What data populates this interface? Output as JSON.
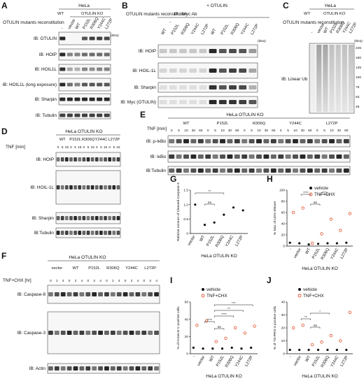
{
  "figure": {
    "panels": [
      {
        "id": "A",
        "letter": "A",
        "cell_line": "HeLa",
        "reconstitution_label": "OTULIN mutants reconstitution",
        "lanes": [
          "-",
          "vector",
          "WT",
          "P152L",
          "R306Q",
          "Y244C",
          "L272P"
        ],
        "group_labels": [
          "WT",
          "OTULIN KO"
        ],
        "blots": [
          "IB: OTULIN",
          "IB: HOIP",
          "IB: HOIL1L",
          "IB: HOIL1L (long exposure)",
          "IB: Sharpin",
          "IB: Tubulin"
        ]
      },
      {
        "id": "B",
        "letter": "B",
        "ip": "IP : Myc Ab",
        "reconstitution_label": "OTULIN mutants reconstitution",
        "conditions": [
          "-",
          "+ OTULIN"
        ],
        "lanes": [
          "WT",
          "P152L",
          "R306Q",
          "Y244C",
          "L272P",
          "WT",
          "P152L",
          "R306Q",
          "Y244C",
          "L272P"
        ],
        "blots": [
          "IB: HOIP",
          "IB: HOIL-1L",
          "IB: Sharpin",
          "IB: Myc (OTULIN)"
        ]
      },
      {
        "id": "C",
        "letter": "C",
        "cell_line": "HeLa",
        "reconstitution_label": "OTULIN mutants reconstitution",
        "lanes": [
          "-",
          "vector",
          "WT",
          "P152L",
          "R306Q",
          "Y244C",
          "L272P"
        ],
        "group_labels": [
          "WT",
          "OTULIN KO"
        ],
        "blots": [
          "IB: Linear Ub"
        ],
        "mw": [
          "245",
          "180",
          "135",
          "100",
          "75",
          "63",
          "48"
        ]
      },
      {
        "id": "D",
        "letter": "D",
        "cell_line": "HeLa OTULIN KO",
        "treatment": "TNF [min]",
        "groups": [
          "WT",
          "P152L",
          "R306Q",
          "Y244C",
          "L272P"
        ],
        "times": [
          "0",
          "5",
          "15"
        ],
        "blots": [
          "IB: HOIP",
          "IB: HOIL-1L",
          "IB: Sharpin",
          "IB:Tubulin"
        ]
      },
      {
        "id": "E",
        "letter": "E",
        "cell_line": "HeLa OTULIN KO",
        "treatment": "TNF [min]",
        "groups": [
          "WT",
          "P152L",
          "R306Q",
          "Y244C",
          "L272P"
        ],
        "times": [
          "0",
          "5",
          "10",
          "30",
          "60"
        ],
        "blots": [
          "IB: p-IκBα",
          "IB: IκBα",
          "IB:Tubulin"
        ]
      },
      {
        "id": "F",
        "letter": "F",
        "cell_line": "HeLa OTULIN KO",
        "treatment": "TNF+CHX [hr]",
        "groups": [
          "vector",
          "WT",
          "P152L",
          "R306Q",
          "Y244C",
          "L272P"
        ],
        "times": [
          "0",
          "2",
          "4"
        ],
        "blots": [
          "IB: Caspase-8",
          "IB: Caspase-3",
          "IB: Actin"
        ]
      },
      {
        "id": "G",
        "letter": "G",
        "ylabel": "Relative amount of Cleaved Caspase-3",
        "xlabel": "HeLa OTULIN KO",
        "ns": "ns",
        "stars": "**"
      },
      {
        "id": "H",
        "letter": "H",
        "ylabel": "% Max of LDH release",
        "xlabel": "HeLa OTULIN KO",
        "ns": "ns",
        "stars": "****"
      },
      {
        "id": "I",
        "letter": "I",
        "ylabel": "% of Annexin-V positive cells",
        "xlabel": "HeLa OTULIN KO",
        "ns": "ns",
        "stars": [
          "****",
          "****",
          "**",
          "***"
        ]
      },
      {
        "id": "J",
        "letter": "J",
        "ylabel": "% of TO-PRO-3 positive cells",
        "xlabel": "HeLa OTULIN KO",
        "ns": "ns",
        "stars": [
          "**",
          "*"
        ]
      }
    ],
    "kda": "(kDa)",
    "legend": {
      "vehicle": "vehicle",
      "treated": "TNF+CHX"
    },
    "colors": {
      "vehicle": "#111111",
      "treated": "#e0502a"
    }
  },
  "chart_data": [
    {
      "type": "scatter",
      "panel": "G",
      "categories": [
        "vector",
        "WT",
        "P152L",
        "R306Q",
        "Y244C",
        "L272P"
      ],
      "ylim": [
        0,
        1.5
      ],
      "yticks": [
        "0",
        "0.5",
        "1.0",
        "1.5"
      ],
      "series": [
        {
          "values": [
            1.0,
            0.3,
            0.38,
            0.65,
            0.9,
            0.8
          ]
        }
      ]
    },
    {
      "type": "scatter",
      "panel": "H",
      "categories": [
        "-",
        "vector",
        "WT",
        "P152L",
        "R306Q",
        "Y244C",
        "L272P"
      ],
      "ylim": [
        0,
        100
      ],
      "yticks": [
        "0",
        "20",
        "40",
        "60",
        "80",
        "100"
      ],
      "series": [
        {
          "name": "vehicle",
          "values": [
            6,
            5,
            3,
            4,
            5,
            5,
            6
          ]
        },
        {
          "name": "TNF+CHX",
          "values": [
            60,
            68,
            5,
            22,
            48,
            28,
            58
          ]
        }
      ]
    },
    {
      "type": "scatter",
      "panel": "I",
      "categories": [
        "-",
        "vector",
        "WT",
        "P152L",
        "R306Q",
        "Y244C",
        "L272P"
      ],
      "ylim": [
        0,
        60
      ],
      "yticks": [
        "0",
        "20",
        "40",
        "60"
      ],
      "series": [
        {
          "name": "vehicle",
          "values": [
            7,
            6,
            6,
            6,
            7,
            6,
            7
          ]
        },
        {
          "name": "TNF+CHX",
          "values": [
            33,
            38,
            14,
            18,
            30,
            24,
            32
          ]
        }
      ]
    },
    {
      "type": "scatter",
      "panel": "J",
      "categories": [
        "-",
        "vector",
        "WT",
        "P152L",
        "R306Q",
        "Y244C",
        "L272P"
      ],
      "ylim": [
        0,
        40
      ],
      "yticks": [
        "0",
        "10",
        "20",
        "30",
        "40"
      ],
      "series": [
        {
          "name": "vehicle",
          "values": [
            3,
            3,
            3,
            3,
            3,
            3,
            3
          ]
        },
        {
          "name": "TNF+CHX",
          "values": [
            20,
            22,
            7,
            9,
            14,
            10,
            32
          ]
        }
      ]
    }
  ]
}
